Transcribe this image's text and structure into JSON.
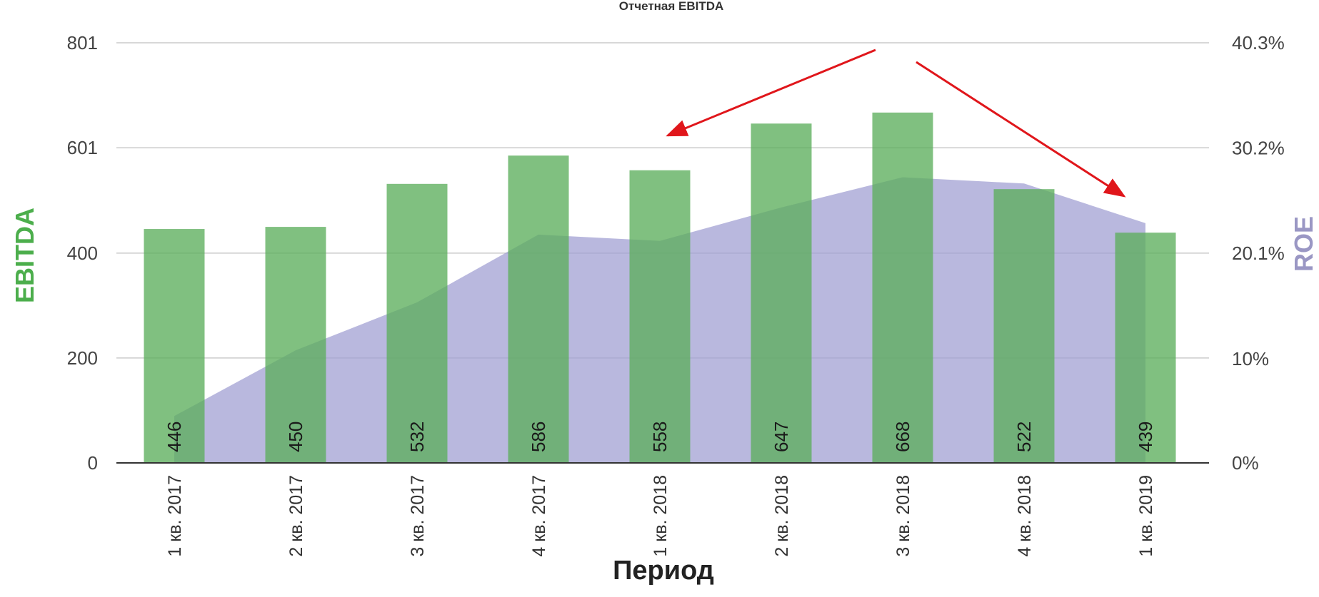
{
  "chart_data": {
    "type": "bar",
    "title": "Отчетная EBITDA",
    "xlabel": "Период",
    "ylabel_left": "EBITDA",
    "ylabel_right": "ROE",
    "categories": [
      "1 кв. 2017",
      "2 кв. 2017",
      "3 кв. 2017",
      "4 кв. 2017",
      "1 кв. 2018",
      "2 кв. 2018",
      "3 кв. 2018",
      "4 кв. 2018",
      "1 кв. 2019"
    ],
    "series": [
      {
        "name": "EBITDA",
        "kind": "bar",
        "axis": "left",
        "values": [
          446,
          450,
          532,
          586,
          558,
          647,
          668,
          522,
          439
        ]
      },
      {
        "name": "ROE",
        "kind": "area",
        "axis": "right",
        "values": [
          4.5,
          10.8,
          15.4,
          21.9,
          21.3,
          24.5,
          27.4,
          26.8,
          23.0
        ]
      }
    ],
    "left_axis": {
      "ticks": [
        "0",
        "200",
        "400",
        "601",
        "801"
      ],
      "tick_values": [
        0,
        200,
        400,
        601,
        801
      ],
      "ylim": [
        0,
        801
      ]
    },
    "right_axis": {
      "ticks": [
        "0%",
        "10%",
        "20.1%",
        "30.2%",
        "40.3%"
      ],
      "tick_values": [
        0,
        10,
        20.1,
        30.2,
        40.3
      ],
      "ylim": [
        0,
        40.3
      ]
    },
    "grid": true,
    "colors": {
      "bar": "#5cae5c",
      "area": "#9e9dd1",
      "arrow": "#e0161b",
      "grid": "#cccccc"
    },
    "annotations": [
      {
        "type": "arrow",
        "from_category": "3 кв. 2018",
        "to_category": "1 кв. 2018",
        "direction": "left-down"
      },
      {
        "type": "arrow",
        "from_category": "3 кв. 2018",
        "to_category": "1 кв. 2019",
        "direction": "right-down"
      }
    ]
  }
}
